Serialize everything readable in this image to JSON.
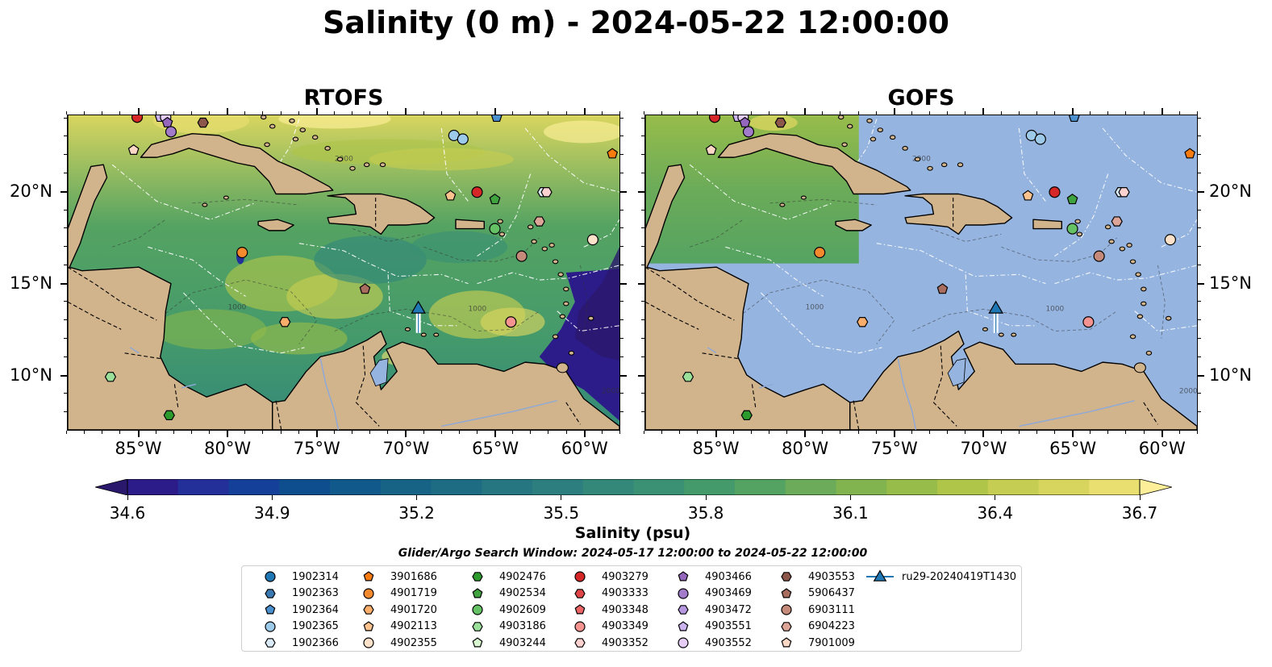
{
  "title": "Salinity (0 m) - 2024-05-22 12:00:00",
  "panels": [
    {
      "id": "rtofs",
      "title": "RTOFS"
    },
    {
      "id": "gofs",
      "title": "GOFS"
    }
  ],
  "x_tick_labels": [
    "85°W",
    "80°W",
    "75°W",
    "70°W",
    "65°W",
    "60°W"
  ],
  "y_tick_labels": [
    "20°N",
    "15°N",
    "10°N"
  ],
  "x_tick_values_lon": [
    -85,
    -80,
    -75,
    -70,
    -65,
    -60
  ],
  "y_tick_values_lat": [
    20,
    15,
    10
  ],
  "map_extent": {
    "lon": [
      -89,
      -58
    ],
    "lat": [
      7,
      24.2
    ]
  },
  "contour_labels": [
    "1000",
    "2000"
  ],
  "colorbar": {
    "label": "Salinity (psu)",
    "tick_labels": [
      "34.6",
      "34.9",
      "35.2",
      "35.5",
      "35.8",
      "36.1",
      "36.4",
      "36.7"
    ],
    "range": [
      34.6,
      36.7
    ],
    "extend": "both",
    "colormap": "haline",
    "colors": [
      "#2a186c",
      "#2b1c8a",
      "#23309a",
      "#15409a",
      "#0f4e8e",
      "#11598a",
      "#176386",
      "#1e6c84",
      "#257681",
      "#2c7f7e",
      "#338879",
      "#3a9173",
      "#459a6b",
      "#55a362",
      "#6bab59",
      "#81b44f",
      "#97bc4a",
      "#aec54a",
      "#c5cd52",
      "#d8d55f",
      "#e9df70",
      "#fdef9a"
    ],
    "land_color": "#d2b48c",
    "no_data_color": "#95b4e0"
  },
  "search_window": "Glider/Argo Search Window: 2024-05-17 12:00:00 to 2024-05-22 12:00:00",
  "legend": {
    "items": [
      {
        "label": "1902314",
        "marker": "circle",
        "color": "#1f77b4"
      },
      {
        "label": "1902363",
        "marker": "hexagon",
        "color": "#3a78b0"
      },
      {
        "label": "1902364",
        "marker": "pentagon",
        "color": "#4a90cf"
      },
      {
        "label": "1902365",
        "marker": "circle",
        "color": "#9ecae9"
      },
      {
        "label": "1902366",
        "marker": "hexagon",
        "color": "#daeaf7"
      },
      {
        "label": "3901686",
        "marker": "pentagon",
        "color": "#f77b0e"
      },
      {
        "label": "4901719",
        "marker": "circle",
        "color": "#f5892e"
      },
      {
        "label": "4901720",
        "marker": "hexagon",
        "color": "#fbae6b"
      },
      {
        "label": "4902113",
        "marker": "pentagon",
        "color": "#fdc38f"
      },
      {
        "label": "4902355",
        "marker": "circle",
        "color": "#fde2c9"
      },
      {
        "label": "4902476",
        "marker": "hexagon",
        "color": "#2c9a2c"
      },
      {
        "label": "4902534",
        "marker": "pentagon",
        "color": "#3fa33f"
      },
      {
        "label": "4902609",
        "marker": "circle",
        "color": "#64c164"
      },
      {
        "label": "4903186",
        "marker": "hexagon",
        "color": "#9ae09a"
      },
      {
        "label": "4903244",
        "marker": "pentagon",
        "color": "#d8f7d1"
      },
      {
        "label": "4903279",
        "marker": "circle",
        "color": "#d62728"
      },
      {
        "label": "4903333",
        "marker": "hexagon",
        "color": "#e04547"
      },
      {
        "label": "4903348",
        "marker": "pentagon",
        "color": "#ec6465"
      },
      {
        "label": "4903349",
        "marker": "circle",
        "color": "#f59390"
      },
      {
        "label": "4903352",
        "marker": "hexagon",
        "color": "#fbd2d0"
      },
      {
        "label": "4903466",
        "marker": "pentagon",
        "color": "#9467bd"
      },
      {
        "label": "4903469",
        "marker": "circle",
        "color": "#a27ccb"
      },
      {
        "label": "4903472",
        "marker": "hexagon",
        "color": "#b697e0"
      },
      {
        "label": "4903551",
        "marker": "pentagon",
        "color": "#cbb3ef"
      },
      {
        "label": "4903552",
        "marker": "circle",
        "color": "#e6cdf5"
      },
      {
        "label": "4903553",
        "marker": "hexagon",
        "color": "#8c564b"
      },
      {
        "label": "5906437",
        "marker": "pentagon",
        "color": "#a86d5f"
      },
      {
        "label": "6903111",
        "marker": "circle",
        "color": "#c58a7a"
      },
      {
        "label": "6904223",
        "marker": "hexagon",
        "color": "#dda597"
      },
      {
        "label": "7901009",
        "marker": "pentagon",
        "color": "#fbd8c6"
      },
      {
        "label": "ru29-20240419T1430",
        "marker": "triangle-line",
        "color": "#1f77b4"
      }
    ]
  },
  "floats": [
    {
      "id": "4903279",
      "lon": -85.1,
      "lat": 24.1
    },
    {
      "id": "4903551",
      "lon": -83.8,
      "lat": 24.1
    },
    {
      "id": "4903552",
      "lon": -83.5,
      "lat": 24.1
    },
    {
      "id": "4903466",
      "lon": -83.4,
      "lat": 23.8
    },
    {
      "id": "4903553",
      "lon": -81.4,
      "lat": 23.8
    },
    {
      "id": "4903469",
      "lon": -83.2,
      "lat": 23.3
    },
    {
      "id": "7901009",
      "lon": -85.3,
      "lat": 22.3
    },
    {
      "id": "1902364",
      "lon": -64.9,
      "lat": 24.1
    },
    {
      "id": "1902365",
      "lon": -67.3,
      "lat": 23.1
    },
    {
      "id": "1902365",
      "lon": -66.8,
      "lat": 22.9
    },
    {
      "id": "3901686",
      "lon": -58.4,
      "lat": 22.1
    },
    {
      "id": "4902113",
      "lon": -67.5,
      "lat": 19.8
    },
    {
      "id": "4903279",
      "lon": -66.0,
      "lat": 20.0
    },
    {
      "id": "4902534",
      "lon": -65.0,
      "lat": 19.6
    },
    {
      "id": "1902366",
      "lon": -62.3,
      "lat": 20.0
    },
    {
      "id": "4903352",
      "lon": -62.1,
      "lat": 20.0
    },
    {
      "id": "6904223",
      "lon": -62.5,
      "lat": 18.4
    },
    {
      "id": "4902609",
      "lon": -65.0,
      "lat": 18.0
    },
    {
      "id": "4902355",
      "lon": -59.5,
      "lat": 17.4
    },
    {
      "id": "6903111",
      "lon": -63.5,
      "lat": 16.5
    },
    {
      "id": "4901719",
      "lon": -79.2,
      "lat": 16.7
    },
    {
      "id": "5906437",
      "lon": -72.3,
      "lat": 14.7
    },
    {
      "id": "4901720",
      "lon": -76.8,
      "lat": 12.9
    },
    {
      "id": "4903349",
      "lon": -64.1,
      "lat": 12.9
    },
    {
      "id": "4903186",
      "lon": -86.6,
      "lat": 9.9
    },
    {
      "id": "4902476",
      "lon": -83.3,
      "lat": 7.8
    }
  ],
  "glider": {
    "id": "ru29-20240419T1430",
    "lon": -69.3,
    "lat": 13.6,
    "track_lat_end": 12.3
  }
}
